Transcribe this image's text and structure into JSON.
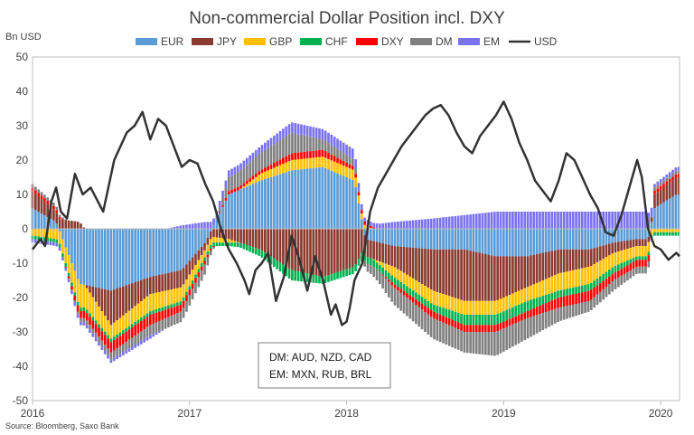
{
  "chart_data": {
    "type": "bar",
    "title": "Non-commercial Dollar Position incl. DXY",
    "unit_label": "Bn USD",
    "ylim": [
      -50,
      50
    ],
    "y_ticks": [
      "50",
      "40",
      "30",
      "20",
      "10",
      "0",
      "-10",
      "-20",
      "-30",
      "-40",
      "-50"
    ],
    "x_ticks": [
      "2016",
      "2017",
      "2018",
      "2019",
      "2020"
    ],
    "grid": false,
    "legend_position": "top",
    "source": "Source: Bloomberg, Saxo Bank",
    "note_lines": [
      "DM: AUD, NZD, CAD",
      "EM: MXN, RUB, BRL"
    ],
    "colors": {
      "EUR": "#5b9bd5",
      "JPY": "#8b3a2f",
      "GBP": "#ffc000",
      "CHF": "#00b050",
      "DXY": "#ff0000",
      "DM": "#808080",
      "EM": "#7b72f0",
      "USD": "#333333"
    },
    "series": [
      {
        "name": "EUR",
        "kind": "bar",
        "anchors": [
          [
            2016.0,
            6
          ],
          [
            2016.15,
            2
          ],
          [
            2016.3,
            -16
          ],
          [
            2016.5,
            -18
          ],
          [
            2016.75,
            -14
          ],
          [
            2016.95,
            -12
          ],
          [
            2017.1,
            -4
          ],
          [
            2017.25,
            10
          ],
          [
            2017.45,
            14
          ],
          [
            2017.65,
            17
          ],
          [
            2017.85,
            18
          ],
          [
            2018.05,
            14
          ],
          [
            2018.12,
            -3
          ],
          [
            2018.3,
            -5
          ],
          [
            2018.55,
            -6
          ],
          [
            2018.75,
            -6
          ],
          [
            2018.95,
            -8
          ],
          [
            2019.15,
            -8
          ],
          [
            2019.35,
            -6
          ],
          [
            2019.55,
            -6
          ],
          [
            2019.7,
            -4
          ],
          [
            2019.85,
            -3
          ],
          [
            2019.92,
            -3
          ],
          [
            2019.96,
            6
          ],
          [
            2020.1,
            10
          ]
        ]
      },
      {
        "name": "JPY",
        "kind": "bar",
        "anchors": [
          [
            2016.0,
            5
          ],
          [
            2016.15,
            3
          ],
          [
            2016.3,
            2
          ],
          [
            2016.5,
            -10
          ],
          [
            2016.75,
            -5
          ],
          [
            2016.95,
            -5
          ],
          [
            2017.1,
            -2
          ],
          [
            2017.25,
            -3
          ],
          [
            2017.45,
            -6
          ],
          [
            2017.65,
            -12
          ],
          [
            2017.85,
            -14
          ],
          [
            2018.05,
            -11
          ],
          [
            2018.12,
            -5
          ],
          [
            2018.3,
            -6
          ],
          [
            2018.55,
            -12
          ],
          [
            2018.75,
            -15
          ],
          [
            2018.95,
            -13
          ],
          [
            2019.15,
            -9
          ],
          [
            2019.35,
            -7
          ],
          [
            2019.55,
            -5
          ],
          [
            2019.7,
            -3
          ],
          [
            2019.85,
            -2
          ],
          [
            2019.92,
            -2
          ],
          [
            2019.96,
            4
          ],
          [
            2020.1,
            5
          ]
        ]
      },
      {
        "name": "GBP",
        "kind": "bar",
        "anchors": [
          [
            2016.0,
            -2
          ],
          [
            2016.15,
            -3
          ],
          [
            2016.3,
            -7
          ],
          [
            2016.5,
            -4
          ],
          [
            2016.75,
            -5
          ],
          [
            2016.95,
            -4
          ],
          [
            2017.1,
            -2
          ],
          [
            2017.25,
            -1
          ],
          [
            2017.45,
            2
          ],
          [
            2017.65,
            3
          ],
          [
            2017.85,
            3
          ],
          [
            2018.05,
            3
          ],
          [
            2018.12,
            1
          ],
          [
            2018.3,
            -3
          ],
          [
            2018.55,
            -4
          ],
          [
            2018.75,
            -4
          ],
          [
            2018.95,
            -4
          ],
          [
            2019.15,
            -4
          ],
          [
            2019.35,
            -5
          ],
          [
            2019.55,
            -5
          ],
          [
            2019.7,
            -4
          ],
          [
            2019.85,
            -3
          ],
          [
            2019.92,
            -3
          ],
          [
            2019.96,
            -1
          ],
          [
            2020.1,
            -1
          ]
        ]
      },
      {
        "name": "CHF",
        "kind": "bar",
        "anchors": [
          [
            2016.0,
            -1
          ],
          [
            2016.15,
            -1
          ],
          [
            2016.3,
            -1
          ],
          [
            2016.5,
            -1
          ],
          [
            2016.75,
            -1
          ],
          [
            2016.95,
            -1
          ],
          [
            2017.1,
            -1
          ],
          [
            2017.25,
            -1
          ],
          [
            2017.45,
            -2
          ],
          [
            2017.65,
            -3
          ],
          [
            2017.85,
            -2
          ],
          [
            2018.05,
            -2
          ],
          [
            2018.12,
            -2
          ],
          [
            2018.3,
            -2
          ],
          [
            2018.55,
            -2
          ],
          [
            2018.75,
            -3
          ],
          [
            2018.95,
            -3
          ],
          [
            2019.15,
            -3
          ],
          [
            2019.35,
            -2
          ],
          [
            2019.55,
            -2
          ],
          [
            2019.7,
            -2
          ],
          [
            2019.85,
            -1
          ],
          [
            2019.92,
            -1
          ],
          [
            2019.96,
            -1
          ],
          [
            2020.1,
            -1
          ]
        ]
      },
      {
        "name": "DXY",
        "kind": "bar",
        "anchors": [
          [
            2016.0,
            1
          ],
          [
            2016.15,
            1
          ],
          [
            2016.3,
            -2
          ],
          [
            2016.5,
            -3
          ],
          [
            2016.75,
            -3
          ],
          [
            2016.95,
            -2
          ],
          [
            2017.1,
            -1
          ],
          [
            2017.25,
            1
          ],
          [
            2017.45,
            1
          ],
          [
            2017.65,
            2
          ],
          [
            2017.85,
            2
          ],
          [
            2018.05,
            1
          ],
          [
            2018.12,
            1
          ],
          [
            2018.3,
            -1
          ],
          [
            2018.55,
            -2
          ],
          [
            2018.75,
            -2
          ],
          [
            2018.95,
            -2
          ],
          [
            2019.15,
            -2
          ],
          [
            2019.35,
            -3
          ],
          [
            2019.55,
            -3
          ],
          [
            2019.7,
            -2
          ],
          [
            2019.85,
            -2
          ],
          [
            2019.92,
            -2
          ],
          [
            2019.96,
            1
          ],
          [
            2020.1,
            1
          ]
        ]
      },
      {
        "name": "DM",
        "kind": "bar",
        "anchors": [
          [
            2016.0,
            1
          ],
          [
            2016.15,
            1
          ],
          [
            2016.3,
            -1
          ],
          [
            2016.5,
            -2
          ],
          [
            2016.75,
            -3
          ],
          [
            2016.95,
            -3
          ],
          [
            2017.1,
            -3
          ],
          [
            2017.25,
            4
          ],
          [
            2017.45,
            5
          ],
          [
            2017.65,
            6
          ],
          [
            2017.85,
            3
          ],
          [
            2018.05,
            2
          ],
          [
            2018.12,
            -2
          ],
          [
            2018.3,
            -5
          ],
          [
            2018.55,
            -6
          ],
          [
            2018.75,
            -6
          ],
          [
            2018.95,
            -7
          ],
          [
            2019.15,
            -6
          ],
          [
            2019.35,
            -4
          ],
          [
            2019.55,
            -3
          ],
          [
            2019.7,
            -3
          ],
          [
            2019.85,
            -2
          ],
          [
            2019.92,
            -2
          ],
          [
            2019.96,
            1
          ],
          [
            2020.1,
            1
          ]
        ]
      },
      {
        "name": "EM",
        "kind": "bar",
        "anchors": [
          [
            2016.0,
            -1
          ],
          [
            2016.15,
            -1
          ],
          [
            2016.3,
            -1
          ],
          [
            2016.5,
            -1
          ],
          [
            2016.75,
            -1
          ],
          [
            2016.95,
            1
          ],
          [
            2017.1,
            2
          ],
          [
            2017.25,
            2
          ],
          [
            2017.45,
            2
          ],
          [
            2017.65,
            3
          ],
          [
            2017.85,
            3
          ],
          [
            2018.05,
            3
          ],
          [
            2018.12,
            1
          ],
          [
            2018.3,
            2
          ],
          [
            2018.55,
            3
          ],
          [
            2018.75,
            4
          ],
          [
            2018.95,
            5
          ],
          [
            2019.15,
            5
          ],
          [
            2019.35,
            5
          ],
          [
            2019.55,
            5
          ],
          [
            2019.7,
            5
          ],
          [
            2019.85,
            5
          ],
          [
            2019.92,
            5
          ],
          [
            2019.96,
            1
          ],
          [
            2020.1,
            1
          ]
        ]
      },
      {
        "name": "USD",
        "kind": "line",
        "points": [
          [
            2016.0,
            -6
          ],
          [
            2016.05,
            -3
          ],
          [
            2016.08,
            -5
          ],
          [
            2016.12,
            8
          ],
          [
            2016.15,
            12
          ],
          [
            2016.18,
            5
          ],
          [
            2016.22,
            3
          ],
          [
            2016.27,
            16
          ],
          [
            2016.32,
            10
          ],
          [
            2016.37,
            12
          ],
          [
            2016.45,
            5
          ],
          [
            2016.52,
            20
          ],
          [
            2016.6,
            28
          ],
          [
            2016.65,
            30
          ],
          [
            2016.7,
            34
          ],
          [
            2016.75,
            26
          ],
          [
            2016.8,
            32
          ],
          [
            2016.85,
            30
          ],
          [
            2016.9,
            24
          ],
          [
            2016.95,
            18
          ],
          [
            2017.0,
            20
          ],
          [
            2017.05,
            19
          ],
          [
            2017.1,
            13
          ],
          [
            2017.15,
            8
          ],
          [
            2017.2,
            0
          ],
          [
            2017.25,
            -6
          ],
          [
            2017.3,
            -10
          ],
          [
            2017.35,
            -15
          ],
          [
            2017.38,
            -19
          ],
          [
            2017.42,
            -12
          ],
          [
            2017.46,
            -10
          ],
          [
            2017.5,
            -7
          ],
          [
            2017.55,
            -21
          ],
          [
            2017.6,
            -14
          ],
          [
            2017.65,
            -2
          ],
          [
            2017.7,
            -9
          ],
          [
            2017.75,
            -18
          ],
          [
            2017.8,
            -8
          ],
          [
            2017.85,
            -15
          ],
          [
            2017.9,
            -25
          ],
          [
            2017.93,
            -22
          ],
          [
            2017.97,
            -28
          ],
          [
            2018.0,
            -27
          ],
          [
            2018.02,
            -23
          ],
          [
            2018.05,
            -15
          ],
          [
            2018.08,
            -12
          ],
          [
            2018.1,
            -10
          ],
          [
            2018.15,
            5
          ],
          [
            2018.2,
            12
          ],
          [
            2018.25,
            16
          ],
          [
            2018.3,
            20
          ],
          [
            2018.35,
            24
          ],
          [
            2018.4,
            27
          ],
          [
            2018.45,
            30
          ],
          [
            2018.5,
            33
          ],
          [
            2018.55,
            35
          ],
          [
            2018.6,
            36
          ],
          [
            2018.65,
            33
          ],
          [
            2018.7,
            28
          ],
          [
            2018.75,
            24
          ],
          [
            2018.8,
            22
          ],
          [
            2018.85,
            27
          ],
          [
            2018.9,
            30
          ],
          [
            2018.95,
            33
          ],
          [
            2019.0,
            37
          ],
          [
            2019.05,
            32
          ],
          [
            2019.1,
            25
          ],
          [
            2019.15,
            20
          ],
          [
            2019.2,
            14
          ],
          [
            2019.25,
            11
          ],
          [
            2019.3,
            8
          ],
          [
            2019.35,
            14
          ],
          [
            2019.4,
            22
          ],
          [
            2019.45,
            20
          ],
          [
            2019.5,
            15
          ],
          [
            2019.55,
            10
          ],
          [
            2019.6,
            6
          ],
          [
            2019.65,
            -1
          ],
          [
            2019.7,
            -2
          ],
          [
            2019.75,
            4
          ],
          [
            2019.8,
            12
          ],
          [
            2019.85,
            20
          ],
          [
            2019.88,
            15
          ],
          [
            2019.92,
            0
          ],
          [
            2019.96,
            -5
          ],
          [
            2020.0,
            -6
          ],
          [
            2020.05,
            -9
          ],
          [
            2020.1,
            -7
          ],
          [
            2020.12,
            -8
          ]
        ]
      }
    ]
  }
}
